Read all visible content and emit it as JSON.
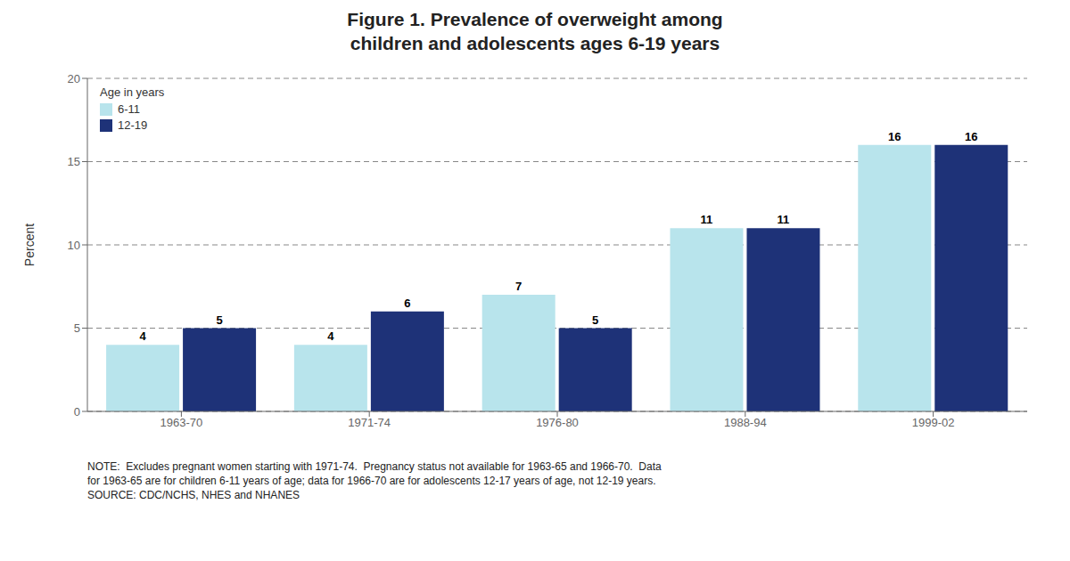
{
  "chart_data": {
    "type": "bar",
    "title": "Figure 1. Prevalence of overweight among\nchildren and adolescents ages 6-19 years",
    "y_label": "Percent",
    "categories": [
      "1963-70",
      "1971-74",
      "1976-80",
      "1988-94",
      "1999-02"
    ],
    "series": [
      {
        "name": "6-11",
        "color": "#b8e4ec",
        "values": [
          4,
          4,
          7,
          11,
          16
        ]
      },
      {
        "name": "12-19",
        "color": "#1e3278",
        "values": [
          5,
          6,
          5,
          11,
          16
        ]
      }
    ],
    "ylim": [
      0,
      20
    ],
    "yticks": [
      0,
      5,
      10,
      15,
      20
    ],
    "grid": true,
    "legend": "upper left",
    "legend_title": "Age in years",
    "data_labels": true,
    "annotations": [
      "NOTE:  Excludes pregnant women starting with 1971-74.  Pregnancy status not available for 1963-65 and 1966-70.  Data\nfor 1963-65 are for children 6-11 years of age; data for 1966-70 are for adolescents 12-17 years of age, not 12-19 years.\nSOURCE: CDC/NCHS, NHES and NHANES"
    ]
  }
}
